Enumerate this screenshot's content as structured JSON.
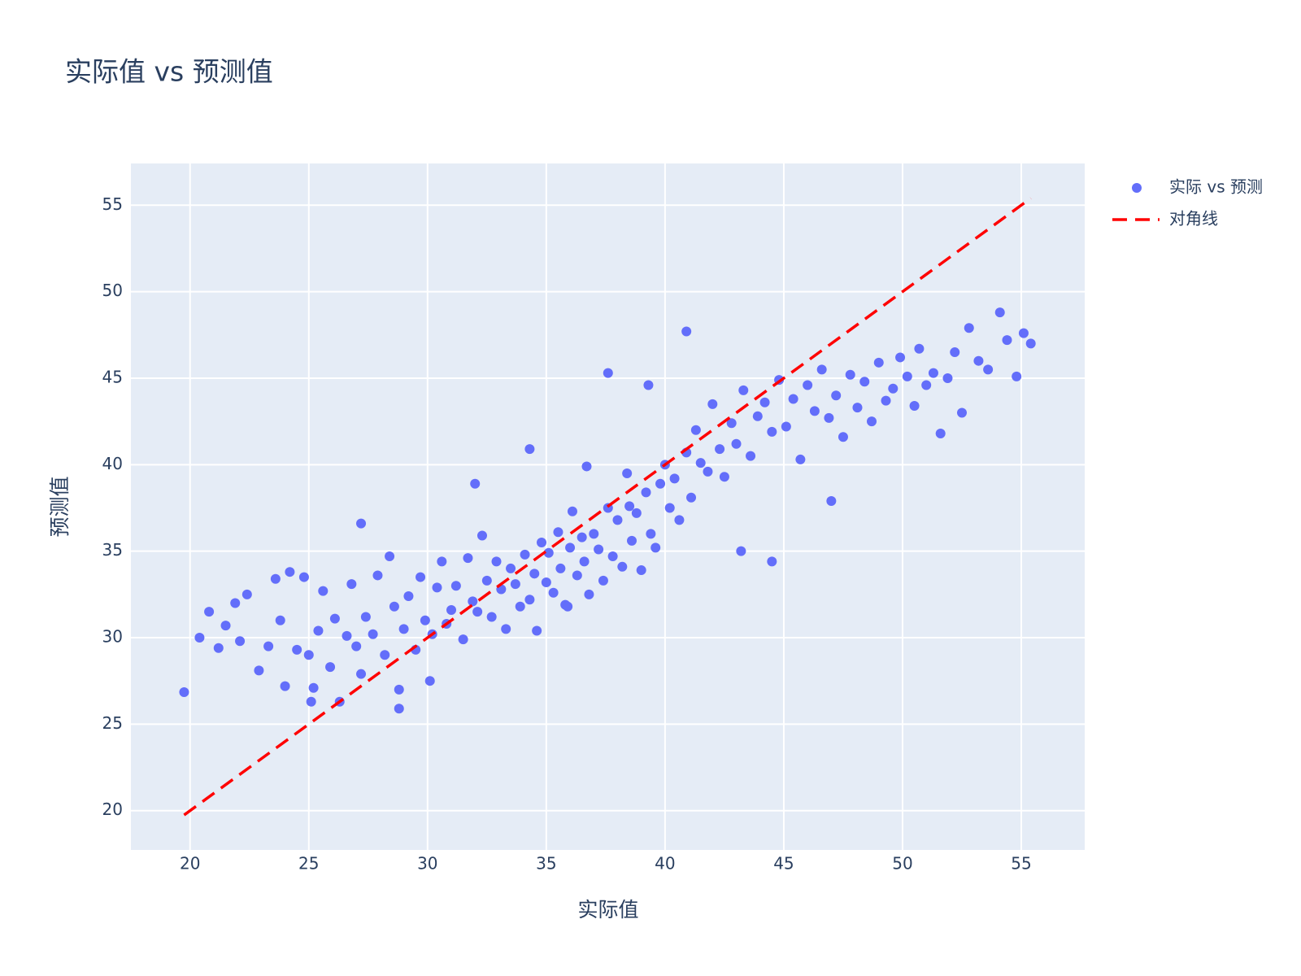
{
  "chart_data": {
    "type": "scatter",
    "title": "实际值 vs 预测值",
    "x_label": "实际值",
    "y_label": "预测值",
    "xlim": [
      17.51,
      57.67
    ],
    "ylim": [
      17.73,
      57.41
    ],
    "xticks": [
      20,
      25,
      30,
      35,
      40,
      45,
      50,
      55
    ],
    "yticks": [
      20,
      25,
      30,
      35,
      40,
      45,
      50,
      55
    ],
    "grid": true,
    "legend": "top-right",
    "series": [
      {
        "name": "实际 vs 预测",
        "mode": "markers",
        "color": "#636efa",
        "x": [
          19.75,
          20.4,
          20.8,
          21.2,
          21.5,
          21.9,
          22.1,
          22.4,
          22.9,
          23.3,
          23.6,
          23.8,
          24.0,
          24.2,
          24.5,
          24.8,
          25.0,
          25.2,
          25.4,
          25.6,
          25.9,
          26.1,
          26.3,
          26.6,
          26.8,
          27.0,
          27.2,
          27.4,
          27.7,
          27.9,
          28.2,
          28.4,
          28.6,
          28.8,
          29.0,
          29.2,
          29.5,
          29.7,
          29.9,
          30.2,
          30.4,
          30.6,
          30.8,
          31.0,
          31.2,
          31.5,
          31.7,
          31.9,
          32.1,
          32.3,
          32.5,
          32.7,
          32.9,
          33.1,
          33.3,
          33.5,
          33.7,
          33.9,
          34.1,
          34.3,
          34.5,
          34.6,
          34.8,
          35.0,
          35.1,
          35.3,
          35.5,
          35.6,
          35.8,
          36.0,
          36.1,
          36.3,
          36.5,
          36.6,
          36.8,
          37.0,
          37.2,
          37.4,
          37.6,
          37.8,
          38.0,
          38.2,
          38.4,
          38.6,
          38.8,
          39.0,
          39.2,
          39.4,
          39.6,
          39.8,
          40.0,
          40.2,
          40.4,
          40.6,
          40.9,
          41.1,
          41.3,
          41.5,
          41.8,
          42.0,
          42.3,
          42.5,
          42.8,
          43.0,
          43.3,
          43.6,
          43.9,
          44.2,
          44.5,
          44.8,
          45.1,
          45.4,
          45.7,
          46.0,
          46.3,
          46.6,
          46.9,
          47.2,
          47.5,
          47.8,
          48.1,
          48.4,
          48.7,
          49.0,
          49.3,
          49.6,
          49.9,
          50.2,
          50.5,
          50.7,
          51.0,
          51.3,
          51.6,
          51.9,
          52.2,
          52.5,
          52.8,
          53.2,
          53.6,
          54.1,
          54.4,
          54.8,
          55.1,
          55.4,
          27.2,
          37.6,
          40.9,
          34.3,
          44.5,
          47.0,
          32.0,
          36.7,
          39.3,
          43.2,
          30.1,
          25.1,
          28.8,
          35.9,
          38.5
        ],
        "values": [
          26.85,
          30.0,
          31.5,
          29.4,
          30.7,
          32.0,
          29.8,
          32.5,
          28.1,
          29.5,
          33.4,
          31.0,
          27.2,
          33.8,
          29.3,
          33.5,
          29.0,
          27.1,
          30.4,
          32.7,
          28.3,
          31.1,
          26.3,
          30.1,
          33.1,
          29.5,
          27.9,
          31.2,
          30.2,
          33.6,
          29.0,
          34.7,
          31.8,
          25.9,
          30.5,
          32.4,
          29.3,
          33.5,
          31.0,
          30.2,
          32.9,
          34.4,
          30.8,
          31.6,
          33.0,
          29.9,
          34.6,
          32.1,
          31.5,
          35.9,
          33.3,
          31.2,
          34.4,
          32.8,
          30.5,
          34.0,
          33.1,
          31.8,
          34.8,
          32.2,
          33.7,
          30.4,
          35.5,
          33.2,
          34.9,
          32.6,
          36.1,
          34.0,
          31.9,
          35.2,
          37.3,
          33.6,
          35.8,
          34.4,
          32.5,
          36.0,
          35.1,
          33.3,
          37.5,
          34.7,
          36.8,
          34.1,
          39.5,
          35.6,
          37.2,
          33.9,
          38.4,
          36.0,
          35.2,
          38.9,
          40.0,
          37.5,
          39.2,
          36.8,
          40.7,
          38.1,
          42.0,
          40.1,
          39.6,
          43.5,
          40.9,
          39.3,
          42.4,
          41.2,
          44.3,
          40.5,
          42.8,
          43.6,
          41.9,
          44.9,
          42.2,
          43.8,
          40.3,
          44.6,
          43.1,
          45.5,
          42.7,
          44.0,
          41.6,
          45.2,
          43.3,
          44.8,
          42.5,
          45.9,
          43.7,
          44.4,
          46.2,
          45.1,
          43.4,
          46.7,
          44.6,
          45.3,
          41.8,
          45.0,
          46.5,
          43.0,
          47.9,
          46.0,
          45.5,
          48.8,
          47.2,
          45.1,
          47.6,
          47.0,
          36.6,
          45.3,
          47.7,
          40.9,
          34.4,
          37.9,
          38.9,
          39.9,
          44.6,
          35.0,
          27.5,
          26.3,
          27.0,
          31.8,
          37.6
        ]
      },
      {
        "name": "对角线",
        "mode": "lines",
        "color": "#ff0000",
        "dash": true,
        "x": [
          19.75,
          55.4
        ],
        "values": [
          19.75,
          55.4
        ]
      }
    ]
  }
}
